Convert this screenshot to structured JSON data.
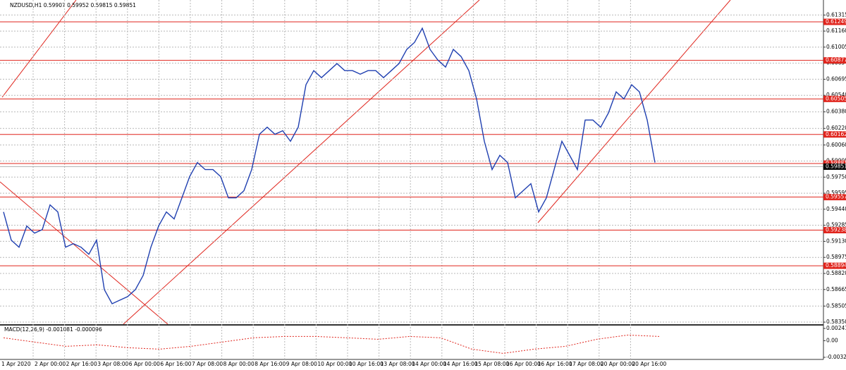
{
  "header": "NZDUSD,H1  0.59907 0.59952 0.59815 0.59851",
  "chart_data": {
    "type": "line",
    "color": "#1f3fb0",
    "values": [
      0.59414,
      0.59141,
      0.59073,
      0.59278,
      0.59209,
      0.59244,
      0.59482,
      0.59414,
      0.59073,
      0.59107,
      0.59073,
      0.59005,
      0.59141,
      0.58664,
      0.58527,
      0.58562,
      0.58596,
      0.58664,
      0.588,
      0.59073,
      0.59278,
      0.59414,
      0.59346,
      0.5955,
      0.59755,
      0.59891,
      0.59823,
      0.59823,
      0.59755,
      0.5955,
      0.5955,
      0.59619,
      0.59823,
      0.60164,
      0.60232,
      0.60164,
      0.60198,
      0.60096,
      0.60232,
      0.60642,
      0.60778,
      0.6071,
      0.60778,
      0.60846,
      0.60778,
      0.60778,
      0.60744,
      0.60778,
      0.60778,
      0.6071,
      0.60778,
      0.60846,
      0.60983,
      0.61051,
      0.61187,
      0.60983,
      0.6088,
      0.60812,
      0.60983,
      0.60914,
      0.60778,
      0.60505,
      0.60096,
      0.59823,
      0.5996,
      0.59891,
      0.5955,
      0.59619,
      0.59687,
      0.59414,
      0.5955,
      0.59823,
      0.60096,
      0.5996,
      0.59823,
      0.60301,
      0.60301,
      0.60232,
      0.60369,
      0.60573,
      0.60505,
      0.60642,
      0.60573,
      0.60301,
      0.59891
    ],
    "x_labels": [
      "1 Apr 2020",
      "2 Apr 00:00",
      "2 Apr 16:00",
      "3 Apr 08:00",
      "6 Apr 00:00",
      "6 Apr 16:00",
      "7 Apr 08:00",
      "8 Apr 00:00",
      "8 Apr 16:00",
      "9 Apr 08:00",
      "10 Apr 00:00",
      "10 Apr 16:00",
      "13 Apr 08:00",
      "14 Apr 00:00",
      "14 Apr 16:00",
      "15 Apr 08:00",
      "16 Apr 00:00",
      "16 Apr 16:00",
      "17 Apr 08:00",
      "20 Apr 00:00",
      "20 Apr 16:00"
    ],
    "ylim": [
      0.5833,
      0.6146
    ],
    "yticks": [
      0.61315,
      {
        "value": 0.6116,
        "label": "0.61160"
      },
      0.61005,
      0.6085,
      0.60695,
      {
        "value": 0.6054,
        "label": "0.60540"
      },
      {
        "value": 0.6038,
        "label": "0.60380"
      },
      {
        "value": 0.6022,
        "label": "0.60220"
      },
      {
        "value": 0.6006,
        "label": "0.60060"
      },
      0.59905,
      {
        "value": 0.5975,
        "label": "0.59750"
      },
      0.59595,
      {
        "value": 0.5944,
        "label": "0.59440"
      },
      0.59285,
      {
        "value": 0.5913,
        "label": "0.59130"
      },
      0.58975,
      {
        "value": 0.5882,
        "label": "0.58820"
      },
      0.58665,
      0.58505,
      {
        "value": 0.5835,
        "label": "0.58350"
      }
    ],
    "levels": [
      0.61249,
      0.60877,
      0.60505,
      0.60162,
      0.59881,
      0.59557,
      0.59238,
      0.58894
    ],
    "level_color": "#e0241c",
    "last_price": 0.59851,
    "grid": true,
    "macd": {
      "title": "MACD(12,26,9) -0.001081 -0.000096",
      "color": "#e0241c",
      "values": [
        0.00056,
        -0.00028,
        -0.00111,
        -0.00083,
        -0.00139,
        -0.00167,
        -0.00111,
        -0.00028,
        0.00056,
        0.00083,
        0.00083,
        0.00056,
        0.00028,
        0.00083,
        0.00056,
        -0.00167,
        -0.0025,
        -0.00167,
        -0.00111,
        0.00028,
        0.00111,
        0.00083
      ],
      "ylim": [
        -0.0037,
        0.00297
      ],
      "yticks": [
        0.002411,
        {
          "value": 0,
          "label": "0.00"
        },
        -0.003281
      ]
    }
  }
}
